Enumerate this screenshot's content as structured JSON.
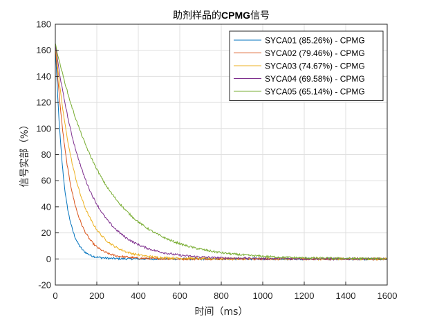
{
  "chart_data": {
    "type": "line",
    "title_pre": "助剂样品的",
    "title_bold": "CPMG",
    "title_post": "信号",
    "xlabel": "时间（ms）",
    "ylabel": "信号实部（%）",
    "xlim": [
      0,
      1600
    ],
    "ylim": [
      -20,
      180
    ],
    "xticks": [
      0,
      200,
      400,
      600,
      800,
      1000,
      1200,
      1400,
      1600
    ],
    "yticks": [
      -20,
      0,
      20,
      40,
      60,
      80,
      100,
      120,
      140,
      160,
      180
    ],
    "grid": true,
    "legend_position": "top-right",
    "x": [
      0,
      25,
      50,
      75,
      100,
      150,
      200,
      250,
      300,
      400,
      500,
      600,
      800,
      1000,
      1200,
      1400,
      1600
    ],
    "series": [
      {
        "name": "SYCA01 (85.26%) - CPMG",
        "color": "#0072BD",
        "values": [
          165,
          90,
          48,
          27,
          15,
          4.5,
          1.4,
          0.5,
          0.2,
          0,
          0,
          0,
          0,
          0,
          0,
          0,
          0
        ]
      },
      {
        "name": "SYCA02 (79.46%) - CPMG",
        "color": "#D95319",
        "values": [
          165,
          115,
          80,
          56,
          39,
          19,
          9.2,
          4.5,
          2.2,
          0.5,
          0.2,
          0,
          0,
          0,
          0,
          0,
          0
        ]
      },
      {
        "name": "SYCA03 (74.67%) - CPMG",
        "color": "#EDB120",
        "values": [
          165,
          128,
          100,
          78,
          61,
          37,
          22.6,
          13.8,
          8.4,
          3.1,
          1.2,
          0.5,
          0.2,
          0,
          0,
          0,
          0
        ]
      },
      {
        "name": "SYCA04 (69.58%) - CPMG",
        "color": "#7E2F8E",
        "values": [
          165,
          138,
          117,
          98,
          83,
          59,
          42,
          30,
          21.5,
          11,
          5.6,
          2.9,
          0.8,
          0.2,
          0.1,
          0,
          0
        ]
      },
      {
        "name": "SYCA05 (65.14%) - CPMG",
        "color": "#77AC30",
        "values": [
          165,
          148,
          133,
          119,
          107,
          86,
          69,
          55,
          44.5,
          28.5,
          18.3,
          11.7,
          4.8,
          2.0,
          0.8,
          0.4,
          0.1
        ]
      }
    ]
  }
}
